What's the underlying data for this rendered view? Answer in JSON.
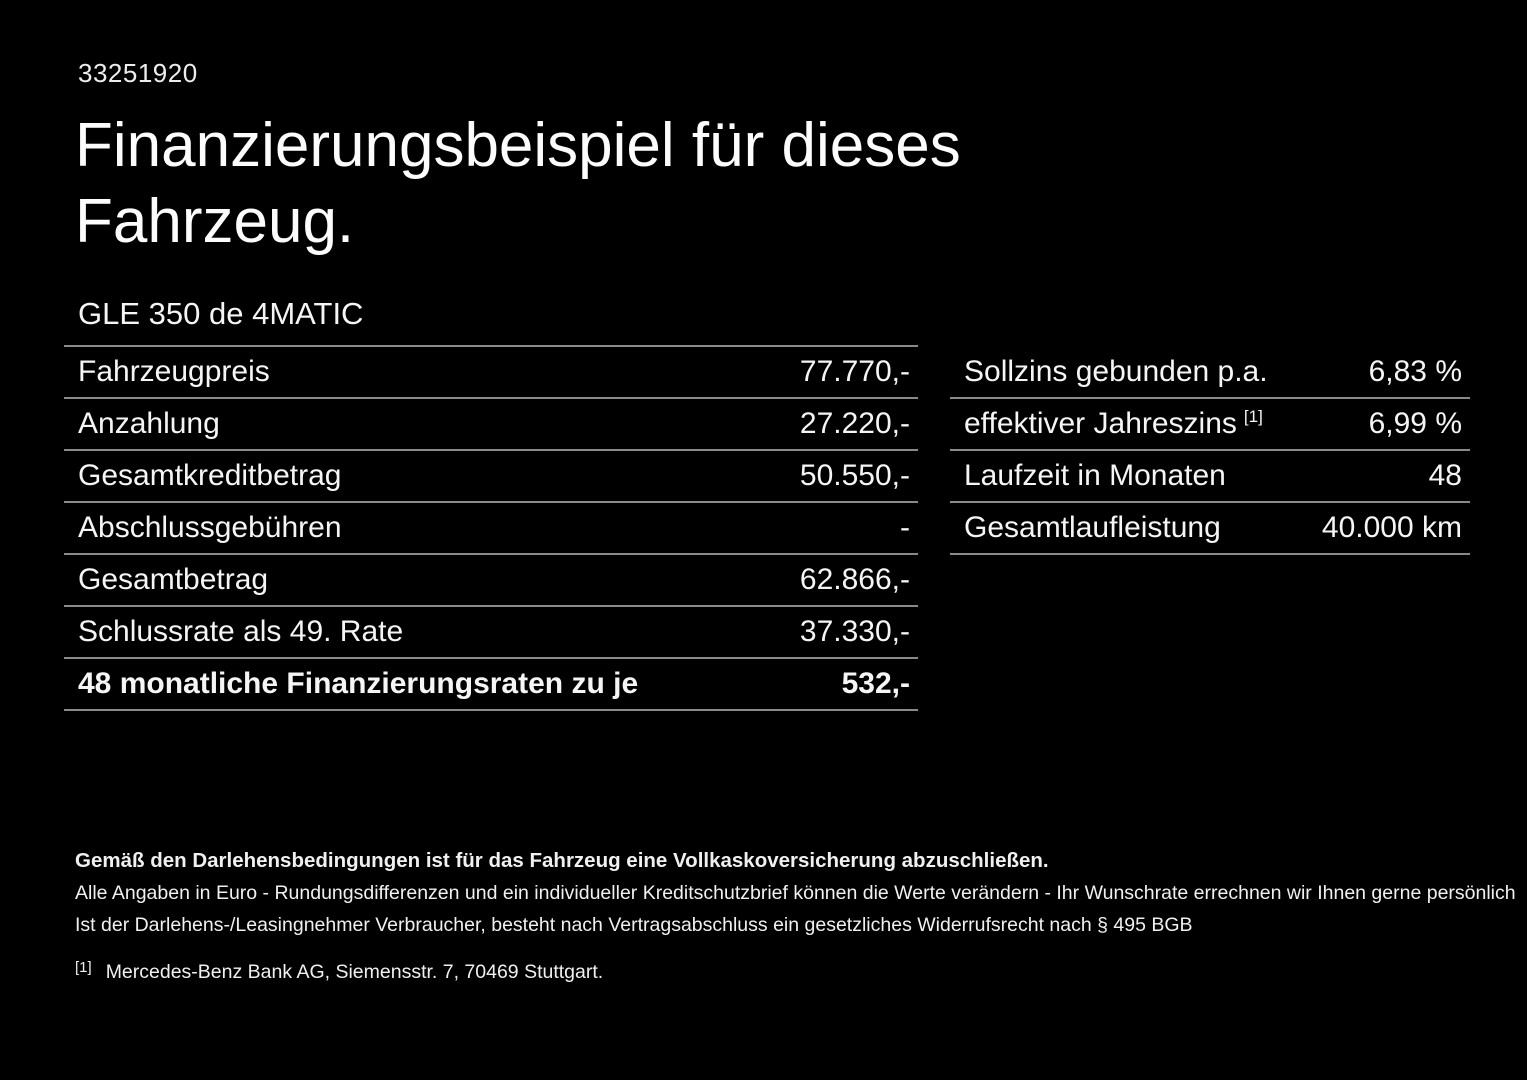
{
  "page": {
    "id_number": "33251920",
    "title_line1": "Finanzierungsbeispiel für dieses",
    "title_line2": "Fahrzeug.",
    "vehicle_name": "GLE 350 de 4MATIC"
  },
  "finance_table": {
    "rows": [
      {
        "label": "Fahrzeugpreis",
        "value": "77.770,-"
      },
      {
        "label": "Anzahlung",
        "value": "27.220,-"
      },
      {
        "label": "Gesamtkreditbetrag",
        "value": "50.550,-"
      },
      {
        "label": "Abschlussgebühren",
        "value": "-"
      },
      {
        "label": "Gesamtbetrag",
        "value": "62.866,-"
      },
      {
        "label": "Schlussrate als 49. Rate",
        "value": "37.330,-"
      },
      {
        "label": "48 monatliche Finanzierungsraten zu je",
        "value": "532,-"
      }
    ]
  },
  "conditions_table": {
    "rows": [
      {
        "label": "Sollzins gebunden p.a.",
        "sup": "",
        "value": "6,83 %"
      },
      {
        "label": "effektiver Jahreszins",
        "sup": "[1]",
        "value": "6,99 %"
      },
      {
        "label": "Laufzeit in Monaten",
        "sup": "",
        "value": "48"
      },
      {
        "label": "Gesamtlaufleistung",
        "sup": "",
        "value": "40.000 km"
      }
    ]
  },
  "footer": {
    "insurance_note": "Gemäß den Darlehensbedingungen ist für das Fahrzeug eine Vollkaskoversicherung abzuschließen.",
    "disclaimer_line1": "Alle Angaben in Euro - Rundungsdifferenzen und ein individueller Kreditschutzbrief können die Werte verändern - Ihr Wunschrate errechnen wir Ihnen gerne persönlich",
    "disclaimer_line2": "Ist der Darlehens-/Leasingnehmer Verbraucher, besteht nach Vertragsabschluss ein gesetzliches Widerrufsrecht nach § 495 BGB",
    "footnote_marker": "[1]",
    "footnote_text": "Mercedes-Benz Bank AG, Siemensstr. 7, 70469 Stuttgart."
  },
  "colors": {
    "background": "#000000",
    "text": "#f5f5f5",
    "separator": "#8a8a8a"
  }
}
